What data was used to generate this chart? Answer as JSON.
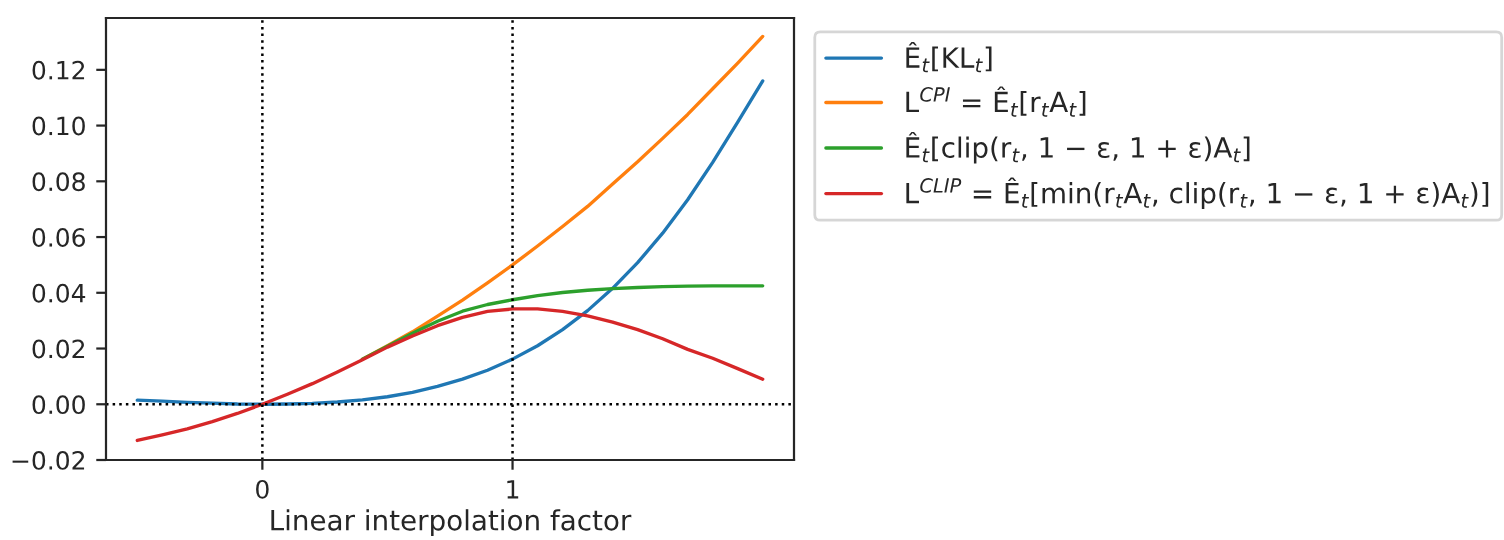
{
  "chart_data": {
    "type": "line",
    "xlabel": "Linear interpolation factor",
    "x": [
      -0.5,
      -0.4,
      -0.3,
      -0.2,
      -0.1,
      0,
      0.1,
      0.2,
      0.3,
      0.4,
      0.5,
      0.6,
      0.7,
      0.8,
      0.9,
      1.0,
      1.1,
      1.2,
      1.3,
      1.4,
      1.5,
      1.6,
      1.7,
      1.8,
      1.9,
      2.0
    ],
    "series": [
      {
        "name": "Ê$_{t}$[KL$_{t}$]",
        "color": "#1f77b4",
        "values": [
          0.0015,
          0.0011,
          0.0007,
          0.0004,
          0.0001,
          0,
          0.0001,
          0.0003,
          0.0008,
          0.0016,
          0.0027,
          0.0043,
          0.0064,
          0.009,
          0.0122,
          0.0162,
          0.021,
          0.0268,
          0.0336,
          0.0416,
          0.0508,
          0.0614,
          0.0734,
          0.0868,
          0.1012,
          0.116
        ]
      },
      {
        "name": "L$^{CPI}$ = Ê$_{t}$[r$_{t}$A$_{t}$]",
        "color": "#ff7f0e",
        "values": [
          null,
          null,
          null,
          null,
          null,
          null,
          null,
          null,
          null,
          0.0162,
          0.021,
          0.026,
          0.0316,
          0.0374,
          0.0436,
          0.05,
          0.0568,
          0.0638,
          0.071,
          0.079,
          0.087,
          0.0954,
          0.104,
          0.1132,
          0.1224,
          0.132
        ]
      },
      {
        "name": "Ê$_{t}$[clip(r$_{t}$, 1 − ε, 1 + ε)A$_{t}$]",
        "color": "#2ca02c",
        "values": [
          null,
          null,
          null,
          null,
          null,
          null,
          null,
          null,
          null,
          0.0162,
          0.0208,
          0.0255,
          0.0298,
          0.0334,
          0.0358,
          0.0375,
          0.039,
          0.0401,
          0.0409,
          0.0415,
          0.0419,
          0.0422,
          0.0424,
          0.0425,
          0.0425,
          0.0425
        ]
      },
      {
        "name": "L$^{CLIP}$ = Ê$_{t}$[min(r$_{t}$A$_{t}$, clip(r$_{t}$, 1 − ε, 1 + ε)A$_{t}$)]",
        "color": "#d62728",
        "values": [
          -0.013,
          -0.011,
          -0.0088,
          -0.0062,
          -0.0033,
          0,
          0.0036,
          0.0074,
          0.0116,
          0.016,
          0.0205,
          0.0245,
          0.0282,
          0.0312,
          0.0333,
          0.0342,
          0.0342,
          0.0333,
          0.0317,
          0.0295,
          0.0268,
          0.0235,
          0.0197,
          0.0165,
          0.0128,
          0.009
        ]
      }
    ],
    "xlim": [
      -0.625,
      2.125
    ],
    "xticks": [
      0,
      1
    ],
    "ylim": [
      -0.02,
      0.1386
    ],
    "yticks": [
      {
        "value": -0.02,
        "label": "−0.02"
      },
      {
        "value": 0,
        "label": "0.00"
      },
      {
        "value": 0.02,
        "label": "0.02"
      },
      {
        "value": 0.04,
        "label": "0.04"
      },
      {
        "value": 0.06,
        "label": "0.06"
      },
      {
        "value": 0.08,
        "label": "0.08"
      },
      {
        "value": 0.1,
        "label": "0.10"
      },
      {
        "value": 0.12,
        "label": "0.12"
      }
    ],
    "ref_lines": [
      {
        "axis": "x",
        "value": 0,
        "color": "#000000",
        "line_style": "dotted"
      },
      {
        "axis": "x",
        "value": 1,
        "color": "#000000",
        "line_style": "dotted"
      },
      {
        "axis": "y",
        "value": 0,
        "color": "#000000",
        "line_style": "dotted"
      }
    ],
    "grid": false,
    "legend": "right",
    "marker": "none",
    "line_style": "solid"
  }
}
